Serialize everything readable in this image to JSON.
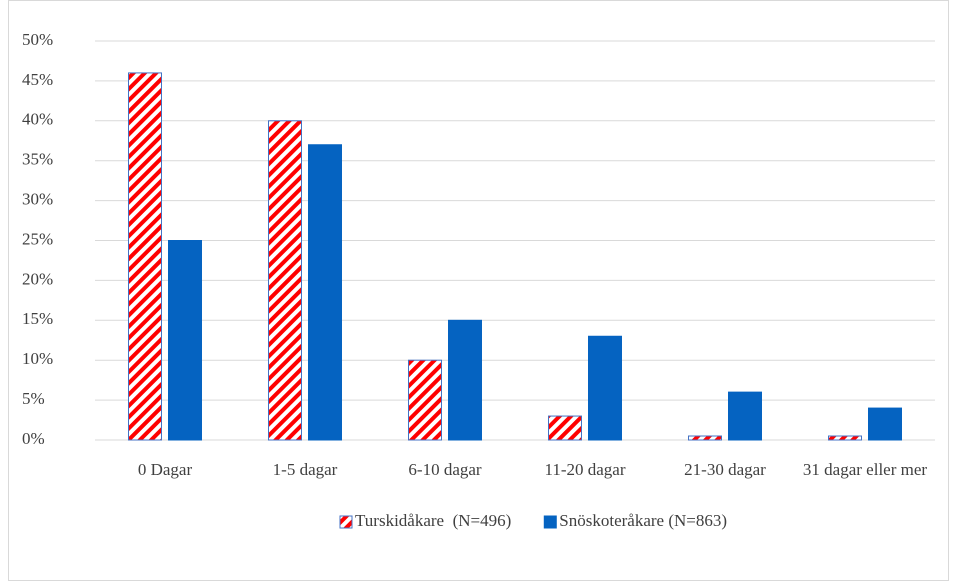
{
  "chart_data": {
    "type": "bar",
    "categories": [
      "0 Dagar",
      "1-5 dagar",
      "6-10 dagar",
      "11-20 dagar",
      "21-30 dagar",
      "31 dagar eller mer"
    ],
    "series": [
      {
        "name": "Turskidåkare  (N=496)",
        "color": "#ff0000",
        "edge_color": "#4472c4",
        "pattern": "diagonal-stripes",
        "values": [
          46,
          40,
          10,
          3,
          0.5,
          0.5
        ]
      },
      {
        "name": "Snöskoteråkare (N=863)",
        "color": "#0563c1",
        "values": [
          25,
          37,
          15,
          13,
          6,
          4
        ]
      }
    ],
    "ylim": [
      0,
      50
    ],
    "yticks": [
      {
        "value": 0,
        "label": "0%"
      },
      {
        "value": 5,
        "label": "5%"
      },
      {
        "value": 10,
        "label": "10%"
      },
      {
        "value": 15,
        "label": "15%"
      },
      {
        "value": 20,
        "label": "20%"
      },
      {
        "value": 25,
        "label": "25%"
      },
      {
        "value": 30,
        "label": "30%"
      },
      {
        "value": 35,
        "label": "35%"
      },
      {
        "value": 40,
        "label": "40%"
      },
      {
        "value": 45,
        "label": "45%"
      },
      {
        "value": 50,
        "label": "50%"
      }
    ],
    "grid": true,
    "legend": "bottom"
  }
}
